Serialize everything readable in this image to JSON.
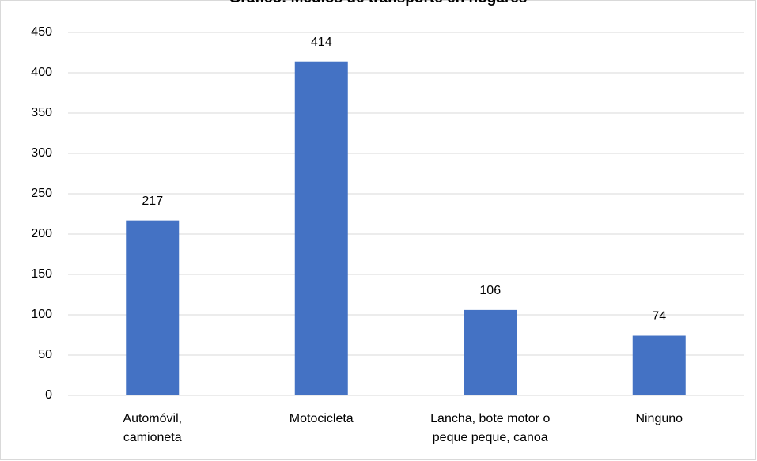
{
  "chart_data": {
    "type": "bar",
    "title": "Gráfico: Medios de transporte en hogares",
    "categories": [
      "Automóvil, camioneta",
      "Motocicleta",
      "Lancha, bote motor o peque peque, canoa",
      "Ninguno"
    ],
    "values": [
      217,
      414,
      106,
      74
    ],
    "color": "#4472c4",
    "ylim": [
      0,
      450
    ],
    "yticks": [
      0,
      50,
      100,
      150,
      200,
      250,
      300,
      350,
      400,
      450
    ],
    "grid": true
  }
}
